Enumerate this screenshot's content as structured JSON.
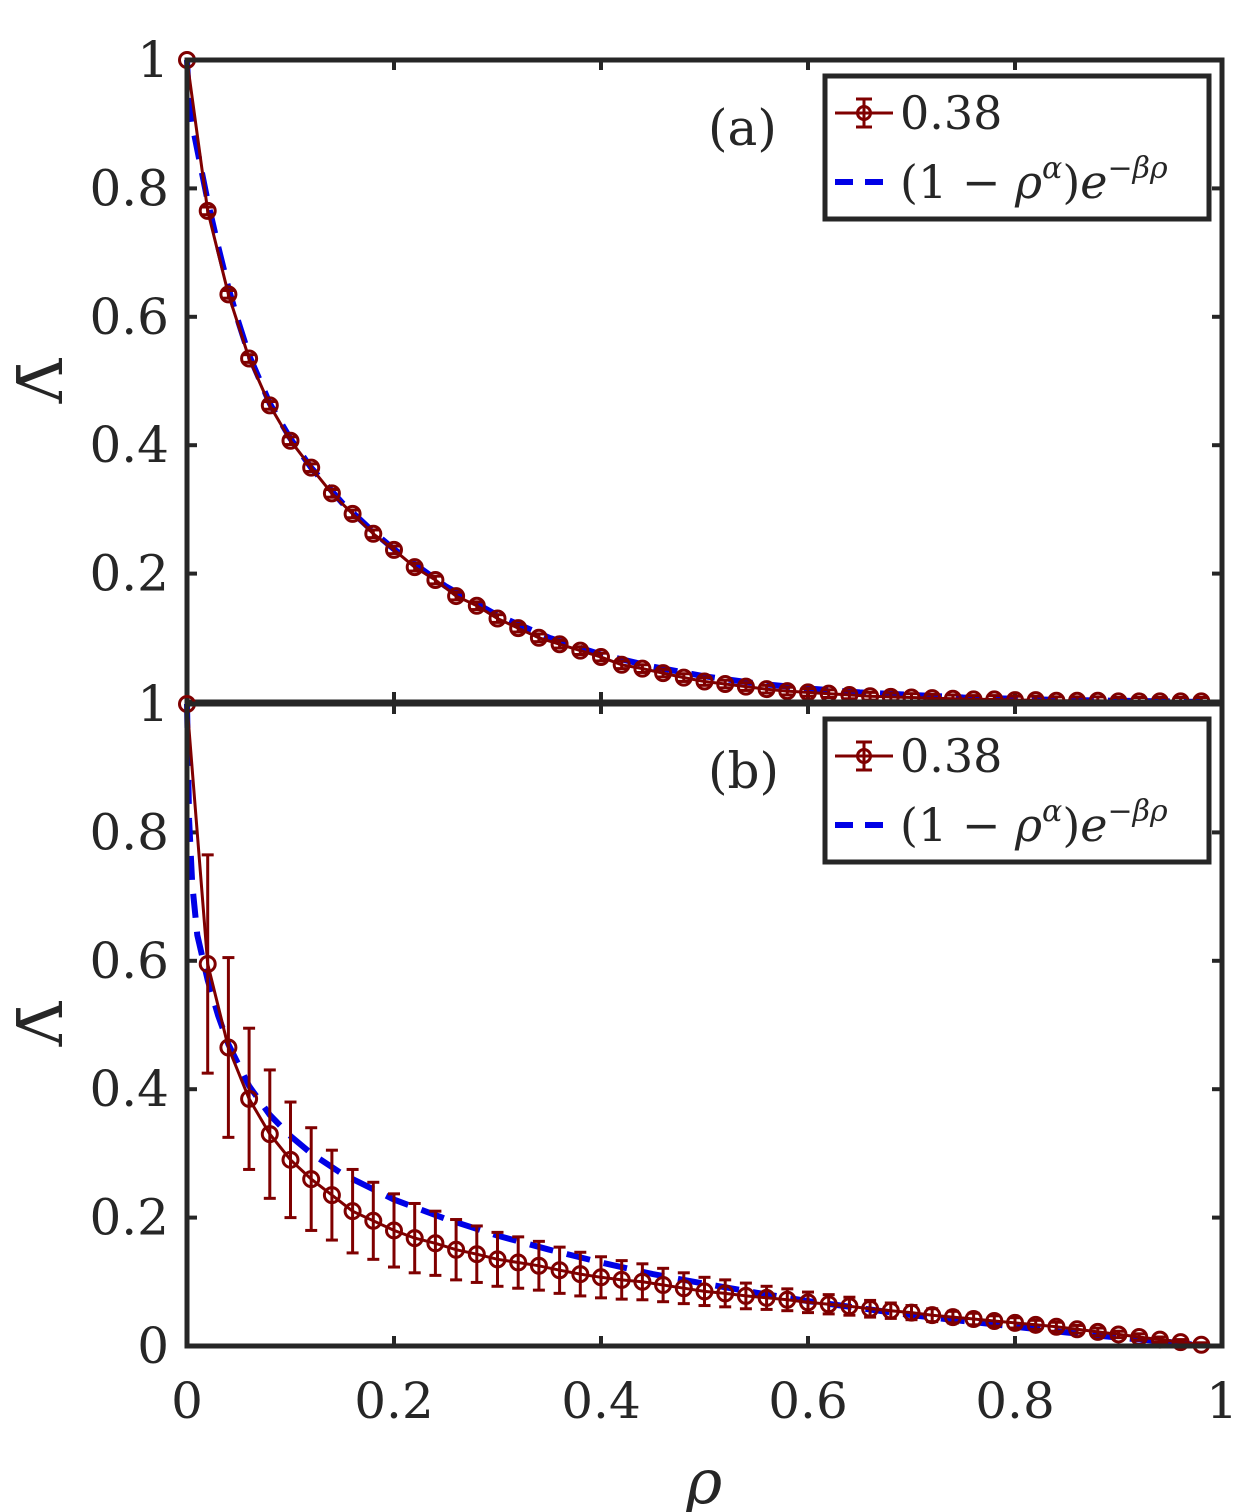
{
  "colors": {
    "data_series": "#7f0000",
    "fit_series": "#0000e6",
    "axes": "#262626",
    "background": "#ffffff"
  },
  "x_axis": {
    "label": "ρ",
    "range": [
      0,
      1
    ],
    "ticks": [
      0,
      0.2,
      0.4,
      0.6,
      0.8,
      1
    ],
    "tick_labels": [
      "0",
      "0.2",
      "0.4",
      "0.6",
      "0.8",
      "1"
    ]
  },
  "chart_data": [
    {
      "type": "line",
      "panel": "(a)",
      "xlabel": "",
      "ylabel": "Λ̄",
      "xlim": [
        0,
        1
      ],
      "ylim": [
        0,
        1
      ],
      "yticks": [
        0.2,
        0.4,
        0.6,
        0.8,
        1
      ],
      "ytick_labels": [
        "0.2",
        "0.4",
        "0.6",
        "0.8",
        "1"
      ],
      "legend": {
        "position": "top-right",
        "entries": [
          "0.38",
          "(1 − ρ^α)e^(−βρ)"
        ]
      },
      "series": [
        {
          "name": "0.38",
          "style": "solid line with circle markers and error bars",
          "x": [
            0,
            0.02,
            0.04,
            0.06,
            0.08,
            0.1,
            0.12,
            0.14,
            0.16,
            0.18,
            0.2,
            0.22,
            0.24,
            0.26,
            0.28,
            0.3,
            0.32,
            0.34,
            0.36,
            0.38,
            0.4,
            0.42,
            0.44,
            0.46,
            0.48,
            0.5,
            0.52,
            0.54,
            0.56,
            0.58,
            0.6,
            0.62,
            0.64,
            0.66,
            0.68,
            0.7,
            0.72,
            0.74,
            0.76,
            0.78,
            0.8,
            0.82,
            0.84,
            0.86,
            0.88,
            0.9,
            0.92,
            0.94,
            0.96,
            0.98
          ],
          "y": [
            1,
            0.765,
            0.635,
            0.535,
            0.462,
            0.407,
            0.365,
            0.325,
            0.293,
            0.262,
            0.237,
            0.21,
            0.19,
            0.165,
            0.15,
            0.13,
            0.115,
            0.1,
            0.09,
            0.08,
            0.07,
            0.058,
            0.052,
            0.045,
            0.038,
            0.032,
            0.028,
            0.024,
            0.02,
            0.017,
            0.015,
            0.013,
            0.011,
            0.009,
            0.008,
            0.007,
            0.006,
            0.005,
            0.004,
            0.004,
            0.003,
            0.003,
            0.002,
            0.002,
            0.002,
            0.001,
            0.001,
            0.001,
            0.001,
            0.001
          ],
          "error": [
            0,
            0.006,
            0.006,
            0.006,
            0.006,
            0.006,
            0.006,
            0.006,
            0.006,
            0.006,
            0.006,
            0.006,
            0.006,
            0.006,
            0.006,
            0.006,
            0.006,
            0.006,
            0.006,
            0.006,
            0.006,
            0.006,
            0.006,
            0.006,
            0.006,
            0.006,
            0.006,
            0.006,
            0.006,
            0.006,
            0.006,
            0.006,
            0.006,
            0.006,
            0.006,
            0.006,
            0.006,
            0.006,
            0.006,
            0.006,
            0.006,
            0.006,
            0.006,
            0.006,
            0.006,
            0.006,
            0.006,
            0.006,
            0.006,
            0.006
          ]
        },
        {
          "name": "(1 − ρ^α)e^(−βρ)",
          "style": "dashed line",
          "x": [
            0,
            0.002,
            0.005,
            0.01,
            0.02,
            0.03,
            0.04,
            0.05,
            0.06,
            0.08,
            0.1,
            0.12,
            0.15,
            0.18,
            0.2,
            0.25,
            0.3,
            0.35,
            0.4,
            0.45,
            0.5,
            0.55,
            0.6,
            0.65,
            0.7,
            0.75,
            0.8,
            0.85,
            0.9,
            0.95,
            0.98
          ],
          "y": [
            1,
            0.935,
            0.9,
            0.86,
            0.78,
            0.71,
            0.645,
            0.59,
            0.54,
            0.465,
            0.41,
            0.365,
            0.31,
            0.265,
            0.238,
            0.18,
            0.135,
            0.1,
            0.074,
            0.055,
            0.04,
            0.029,
            0.021,
            0.015,
            0.011,
            0.007,
            0.005,
            0.003,
            0.002,
            0.001,
            0
          ]
        }
      ]
    },
    {
      "type": "line",
      "panel": "(b)",
      "xlabel": "ρ",
      "ylabel": "Λ̄",
      "xlim": [
        0,
        1
      ],
      "ylim": [
        0,
        1
      ],
      "yticks": [
        0,
        0.2,
        0.4,
        0.6,
        0.8,
        1
      ],
      "ytick_labels": [
        "0",
        "0.2",
        "0.4",
        "0.6",
        "0.8",
        "1"
      ],
      "legend": {
        "position": "top-right",
        "entries": [
          "0.38",
          "(1 − ρ^α)e^(−βρ)"
        ]
      },
      "series": [
        {
          "name": "0.38",
          "style": "solid line with circle markers and error bars",
          "x": [
            0,
            0.02,
            0.04,
            0.06,
            0.08,
            0.1,
            0.12,
            0.14,
            0.16,
            0.18,
            0.2,
            0.22,
            0.24,
            0.26,
            0.28,
            0.3,
            0.32,
            0.34,
            0.36,
            0.38,
            0.4,
            0.42,
            0.44,
            0.46,
            0.48,
            0.5,
            0.52,
            0.54,
            0.56,
            0.58,
            0.6,
            0.62,
            0.64,
            0.66,
            0.68,
            0.7,
            0.72,
            0.74,
            0.76,
            0.78,
            0.8,
            0.82,
            0.84,
            0.86,
            0.88,
            0.9,
            0.92,
            0.94,
            0.96,
            0.98
          ],
          "y": [
            1,
            0.595,
            0.465,
            0.385,
            0.33,
            0.29,
            0.26,
            0.235,
            0.21,
            0.195,
            0.18,
            0.168,
            0.16,
            0.15,
            0.143,
            0.135,
            0.13,
            0.125,
            0.118,
            0.112,
            0.107,
            0.103,
            0.1,
            0.095,
            0.09,
            0.085,
            0.082,
            0.078,
            0.075,
            0.072,
            0.068,
            0.065,
            0.062,
            0.058,
            0.055,
            0.052,
            0.048,
            0.045,
            0.042,
            0.039,
            0.036,
            0.033,
            0.03,
            0.026,
            0.022,
            0.018,
            0.014,
            0.01,
            0.006,
            0.002
          ],
          "error": [
            0,
            0.17,
            0.14,
            0.11,
            0.1,
            0.09,
            0.08,
            0.07,
            0.065,
            0.06,
            0.057,
            0.054,
            0.05,
            0.047,
            0.044,
            0.042,
            0.04,
            0.038,
            0.036,
            0.034,
            0.032,
            0.03,
            0.028,
            0.026,
            0.024,
            0.022,
            0.021,
            0.02,
            0.018,
            0.017,
            0.016,
            0.015,
            0.014,
            0.013,
            0.012,
            0.011,
            0.01,
            0.009,
            0.009,
            0.008,
            0.008,
            0.007,
            0.007,
            0.006,
            0.006,
            0.005,
            0.005,
            0.004,
            0.004,
            0.003
          ]
        },
        {
          "name": "(1 − ρ^α)e^(−βρ)",
          "style": "dashed line",
          "x": [
            0,
            0.002,
            0.005,
            0.01,
            0.02,
            0.03,
            0.04,
            0.06,
            0.08,
            0.1,
            0.12,
            0.15,
            0.2,
            0.25,
            0.3,
            0.35,
            0.4,
            0.45,
            0.5,
            0.55,
            0.6,
            0.65,
            0.7,
            0.75,
            0.8,
            0.85,
            0.9,
            0.95,
            0.98
          ],
          "y": [
            1,
            0.82,
            0.72,
            0.64,
            0.57,
            0.515,
            0.47,
            0.405,
            0.36,
            0.327,
            0.3,
            0.268,
            0.228,
            0.198,
            0.172,
            0.15,
            0.13,
            0.112,
            0.097,
            0.083,
            0.07,
            0.059,
            0.048,
            0.039,
            0.03,
            0.021,
            0.013,
            0.006,
            0.001
          ]
        }
      ]
    }
  ]
}
